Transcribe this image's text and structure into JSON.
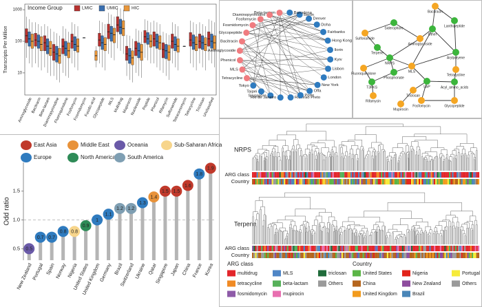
{
  "chart_data": [
    {
      "type": "box",
      "legend_title": "Income Group",
      "ylabel": "Transcripts Per Million",
      "log": true,
      "ylim": [
        2,
        1500
      ],
      "yticks": [
        10,
        100,
        1000
      ],
      "categories": [
        "Aminoglycoside",
        "Bacitracin",
        "Beta-lactam",
        "Diaminopyrimidine",
        "Fluoroquinolone",
        "Fosfomycin",
        "Fosmidomycin",
        "Fusidic-acid",
        "Glycopeptide",
        "MLS",
        "Multidrug",
        "Mupirocin",
        "Nucleoside",
        "Peptide",
        "Phenicol",
        "Rifamycin",
        "Sulfonamide",
        "Tetracenomycin",
        "Tetracycline",
        "Triclosan",
        "Unclassified"
      ],
      "series": [
        {
          "name": "LMIC",
          "color": "#b8312f",
          "median": [
            150,
            110,
            90,
            45,
            70,
            100,
            null,
            null,
            110,
            200,
            330,
            40,
            60,
            140,
            120,
            55,
            100,
            null,
            110,
            100,
            120
          ],
          "q1": [
            90,
            70,
            50,
            25,
            40,
            60,
            null,
            null,
            70,
            120,
            200,
            25,
            35,
            90,
            70,
            30,
            60,
            null,
            70,
            60,
            70
          ],
          "q3": [
            250,
            180,
            150,
            80,
            120,
            170,
            null,
            null,
            180,
            350,
            600,
            70,
            100,
            220,
            200,
            90,
            170,
            null,
            190,
            170,
            200
          ],
          "lo": [
            30,
            20,
            15,
            8,
            10,
            20,
            null,
            null,
            20,
            40,
            60,
            8,
            10,
            30,
            20,
            10,
            20,
            null,
            20,
            20,
            25
          ],
          "hi": [
            600,
            400,
            350,
            200,
            300,
            400,
            null,
            null,
            450,
            800,
            1200,
            160,
            250,
            500,
            450,
            200,
            400,
            null,
            450,
            400,
            500
          ]
        },
        {
          "name": "UMIC",
          "color": "#3a6fb0",
          "median": [
            120,
            100,
            70,
            40,
            60,
            80,
            130,
            null,
            90,
            180,
            280,
            35,
            50,
            120,
            100,
            50,
            80,
            70,
            90,
            90,
            100
          ],
          "q1": [
            70,
            60,
            40,
            22,
            35,
            50,
            130,
            null,
            55,
            100,
            170,
            20,
            30,
            80,
            60,
            28,
            50,
            70,
            55,
            55,
            60
          ],
          "q3": [
            200,
            160,
            120,
            70,
            100,
            140,
            130,
            null,
            150,
            300,
            500,
            60,
            90,
            190,
            170,
            80,
            140,
            70,
            160,
            150,
            170
          ],
          "lo": [
            20,
            15,
            10,
            6,
            8,
            15,
            130,
            null,
            15,
            30,
            50,
            6,
            8,
            25,
            15,
            8,
            15,
            70,
            15,
            15,
            20
          ],
          "hi": [
            500,
            350,
            300,
            180,
            250,
            350,
            130,
            null,
            400,
            700,
            1100,
            150,
            220,
            450,
            400,
            180,
            350,
            70,
            400,
            350,
            450
          ]
        },
        {
          "name": "HIC",
          "color": "#e8963a",
          "median": [
            100,
            80,
            60,
            35,
            50,
            70,
            null,
            35,
            80,
            160,
            250,
            30,
            45,
            100,
            90,
            45,
            70,
            null,
            80,
            80,
            90
          ],
          "q1": [
            60,
            50,
            35,
            20,
            30,
            45,
            null,
            25,
            50,
            90,
            150,
            18,
            25,
            65,
            55,
            25,
            45,
            null,
            50,
            50,
            55
          ],
          "q3": [
            170,
            140,
            100,
            60,
            90,
            120,
            null,
            50,
            130,
            260,
            450,
            50,
            80,
            160,
            150,
            75,
            120,
            null,
            140,
            130,
            150
          ],
          "lo": [
            15,
            12,
            8,
            5,
            7,
            12,
            null,
            15,
            12,
            25,
            40,
            5,
            7,
            20,
            12,
            6,
            12,
            null,
            12,
            12,
            15
          ],
          "hi": [
            400,
            300,
            250,
            150,
            200,
            300,
            null,
            70,
            350,
            600,
            1000,
            120,
            200,
            400,
            350,
            160,
            300,
            null,
            350,
            300,
            400
          ]
        }
      ]
    },
    {
      "type": "lollipop",
      "ylabel": "Odd ratio",
      "ylim": [
        0.3,
        2.0
      ],
      "yticks": [
        {
          "value": 0.5,
          "label": "0.5"
        },
        {
          "value": 1,
          "label": "1.0"
        },
        {
          "value": 1.5,
          "label": "1.5"
        }
      ],
      "ref_line": 1,
      "legend": [
        {
          "name": "East Asia",
          "color": "#c0392b"
        },
        {
          "name": "Middle East",
          "color": "#e8923a"
        },
        {
          "name": "Oceania",
          "color": "#6a5aa8"
        },
        {
          "name": "Sub-Saharan Africa",
          "color": "#f7d58b"
        },
        {
          "name": "Europe",
          "color": "#2f7bbf"
        },
        {
          "name": "North America",
          "color": "#2e8b57"
        },
        {
          "name": "South America",
          "color": "#7f9fb3"
        }
      ],
      "categories": [
        "New Zealand",
        "Portugal",
        "Spain",
        "Norway",
        "Nigeria",
        "United States",
        "United Kingdom",
        "Germany",
        "Brazil",
        "Switzerland",
        "Ukraine",
        "Qatar",
        "Singapore",
        "Japan",
        "China",
        "France",
        "Korea"
      ],
      "values": [
        0.5,
        0.7,
        0.7,
        0.8,
        0.8,
        0.9,
        1,
        1.1,
        1.2,
        1.2,
        1.3,
        1.4,
        1.5,
        1.5,
        1.6,
        1.8,
        1.9
      ],
      "colors": [
        "#6a5aa8",
        "#2f7bbf",
        "#2f7bbf",
        "#2f7bbf",
        "#f7d58b",
        "#2e8b57",
        "#2f7bbf",
        "#2f7bbf",
        "#7f9fb3",
        "#7f9fb3",
        "#2f7bbf",
        "#e8923a",
        "#c0392b",
        "#c0392b",
        "#c0392b",
        "#2f7bbf",
        "#c0392b"
      ]
    },
    {
      "type": "dendrogram",
      "trees": [
        "NRPS",
        "Terpene"
      ],
      "row_labels": [
        "ARG class",
        "Country"
      ],
      "legends": [
        {
          "title": "ARG class",
          "items": [
            {
              "name": "multidrug",
              "color": "#e3262b"
            },
            {
              "name": "tetracycline",
              "color": "#f08a24"
            },
            {
              "name": "fosmidomycin",
              "color": "#8e5ba8"
            },
            {
              "name": "MLS",
              "color": "#4f86c6"
            },
            {
              "name": "beta-lactam",
              "color": "#56b15a"
            },
            {
              "name": "mupirocin",
              "color": "#e86fb0"
            },
            {
              "name": "triclosan",
              "color": "#1f6b3a"
            },
            {
              "name": "Others",
              "color": "#9a9a9a"
            }
          ]
        },
        {
          "title": "Country",
          "items": [
            {
              "name": "United States",
              "color": "#5bb547"
            },
            {
              "name": "China",
              "color": "#b5651d"
            },
            {
              "name": "United Kingdom",
              "color": "#f29b1d"
            },
            {
              "name": "Nigeria",
              "color": "#e2231a"
            },
            {
              "name": "New Zealand",
              "color": "#8e4c9e"
            },
            {
              "name": "Brazil",
              "color": "#4a86b8"
            },
            {
              "name": "Portugal",
              "color": "#f6eb3a"
            },
            {
              "name": "Others",
              "color": "#9a9a9a"
            }
          ]
        }
      ]
    }
  ],
  "networks": [
    {
      "nodes": [
        {
          "label": "Beta-lactam",
          "color": "#f07c80"
        },
        {
          "label": "Diaminopyrimidine",
          "color": "#f07c80"
        },
        {
          "label": "Fosfomycin",
          "color": "#f07c80"
        },
        {
          "label": "Fosmidomycin",
          "color": "#f07c80"
        },
        {
          "label": "Glycopeptide",
          "color": "#f07c80"
        },
        {
          "label": "Bacitracin",
          "color": "#f07c80"
        },
        {
          "label": "Aminoglycoside",
          "color": "#f07c80"
        },
        {
          "label": "Phenicol",
          "color": "#f07c80"
        },
        {
          "label": "MLS",
          "color": "#f07c80"
        },
        {
          "label": "Tetracycline",
          "color": "#f07c80"
        },
        {
          "label": "Tokyo",
          "color": "#2f7bbf"
        },
        {
          "label": "Taipei",
          "color": "#2f7bbf"
        },
        {
          "label": "Singapore",
          "color": "#2f7bbf"
        },
        {
          "label": "Rio de Janeiro",
          "color": "#2f7bbf"
        },
        {
          "label": "Ribeirao Preto",
          "color": "#2f7bbf"
        },
        {
          "label": "Porto",
          "color": "#2f7bbf"
        },
        {
          "label": "Offa",
          "color": "#2f7bbf"
        },
        {
          "label": "New York",
          "color": "#2f7bbf"
        },
        {
          "label": "London",
          "color": "#2f7bbf"
        },
        {
          "label": "Lisbon",
          "color": "#2f7bbf"
        },
        {
          "label": "Kyiv",
          "color": "#2f7bbf"
        },
        {
          "label": "Ilorin",
          "color": "#2f7bbf"
        },
        {
          "label": "Hong Kong",
          "color": "#2f7bbf"
        },
        {
          "label": "Fairbanks",
          "color": "#2f7bbf"
        },
        {
          "label": "Doha",
          "color": "#2f7bbf"
        },
        {
          "label": "Denver",
          "color": "#2f7bbf"
        },
        {
          "label": "Berlin",
          "color": "#2f7bbf"
        },
        {
          "label": "Barcelona",
          "color": "#2f7bbf"
        }
      ]
    },
    {
      "nodes": [
        {
          "label": "Bacitracin",
          "color": "#f5a623"
        },
        {
          "label": "Lanthipeptide",
          "color": "#3cb53c"
        },
        {
          "label": "Siderophore",
          "color": "#3cb53c"
        },
        {
          "label": "Other",
          "color": "#3cb53c"
        },
        {
          "label": "Aminoglycoside",
          "color": "#f5a623"
        },
        {
          "label": "Sulfonamide",
          "color": "#f5a623"
        },
        {
          "label": "Terpene",
          "color": "#3cb53c"
        },
        {
          "label": "NRPS",
          "color": "#3cb53c"
        },
        {
          "label": "MLS",
          "color": "#f5a623"
        },
        {
          "label": "Arylpolyene",
          "color": "#3cb53c"
        },
        {
          "label": "Fluoroquinolone",
          "color": "#f5a623"
        },
        {
          "label": "Phosphonate",
          "color": "#3cb53c"
        },
        {
          "label": "T3PKS",
          "color": "#3cb53c"
        },
        {
          "label": "Tetracycline",
          "color": "#f5a623"
        },
        {
          "label": "LAP",
          "color": "#3cb53c"
        },
        {
          "label": "Triclosan",
          "color": "#f5a623"
        },
        {
          "label": "Acyl_amino_acids",
          "color": "#3cb53c"
        },
        {
          "label": "Mupirocin",
          "color": "#f5a623"
        },
        {
          "label": "Fosfomycin",
          "color": "#f5a623"
        },
        {
          "label": "Glycopeptide",
          "color": "#f5a623"
        },
        {
          "label": "Rifamycin",
          "color": "#f5a623"
        }
      ]
    }
  ]
}
